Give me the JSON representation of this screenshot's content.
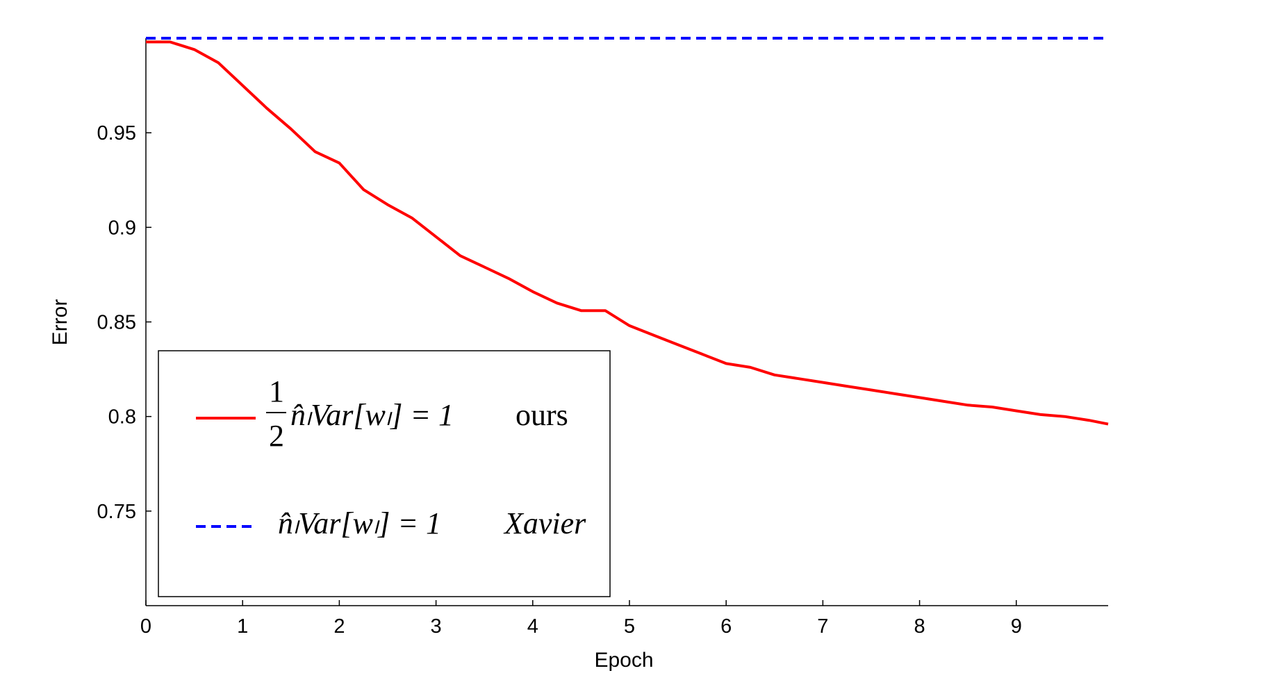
{
  "chart_data": {
    "type": "line",
    "xlabel": "Epoch",
    "ylabel": "Error",
    "xlim": [
      0,
      9.95
    ],
    "ylim": [
      0.7,
      1.0
    ],
    "xticks": [
      0,
      1,
      2,
      3,
      4,
      5,
      6,
      7,
      8,
      9
    ],
    "xtick_labels": [
      "0",
      "1",
      "2",
      "3",
      "4",
      "5",
      "6",
      "7",
      "8",
      "9"
    ],
    "yticks": [
      0.75,
      0.8,
      0.85,
      0.9,
      0.95
    ],
    "ytick_labels": [
      "0.75",
      "0.8",
      "0.85",
      "0.9",
      "0.95"
    ],
    "grid": false,
    "legend_position": "lower-left",
    "series": [
      {
        "color": "#ff0000",
        "style": "solid",
        "legend_label": {
          "frac_num": "1",
          "frac_den": "2",
          "formula": "n̂ₗVar[wₗ] = 1",
          "tag": "ours"
        },
        "x": [
          0.0,
          0.25,
          0.5,
          0.75,
          1.0,
          1.25,
          1.5,
          1.75,
          2.0,
          2.25,
          2.5,
          2.75,
          3.0,
          3.25,
          3.5,
          3.75,
          4.0,
          4.25,
          4.5,
          4.75,
          5.0,
          5.25,
          5.5,
          5.75,
          6.0,
          6.25,
          6.5,
          6.75,
          7.0,
          7.25,
          7.5,
          7.75,
          8.0,
          8.25,
          8.5,
          8.75,
          9.0,
          9.25,
          9.5,
          9.75,
          9.95
        ],
        "values": [
          0.998,
          0.998,
          0.994,
          0.987,
          0.975,
          0.963,
          0.952,
          0.94,
          0.934,
          0.92,
          0.912,
          0.905,
          0.895,
          0.885,
          0.879,
          0.873,
          0.866,
          0.86,
          0.856,
          0.856,
          0.848,
          0.843,
          0.838,
          0.833,
          0.828,
          0.826,
          0.822,
          0.82,
          0.818,
          0.816,
          0.814,
          0.812,
          0.81,
          0.808,
          0.806,
          0.805,
          0.803,
          0.801,
          0.8,
          0.798,
          0.796
        ]
      },
      {
        "color": "#0000ff",
        "style": "dashed",
        "legend_label": {
          "formula": "n̂ₗVar[wₗ] = 1",
          "tag": "Xavier"
        },
        "x": [
          0.0,
          9.95
        ],
        "values": [
          1.0,
          1.0
        ]
      }
    ]
  }
}
